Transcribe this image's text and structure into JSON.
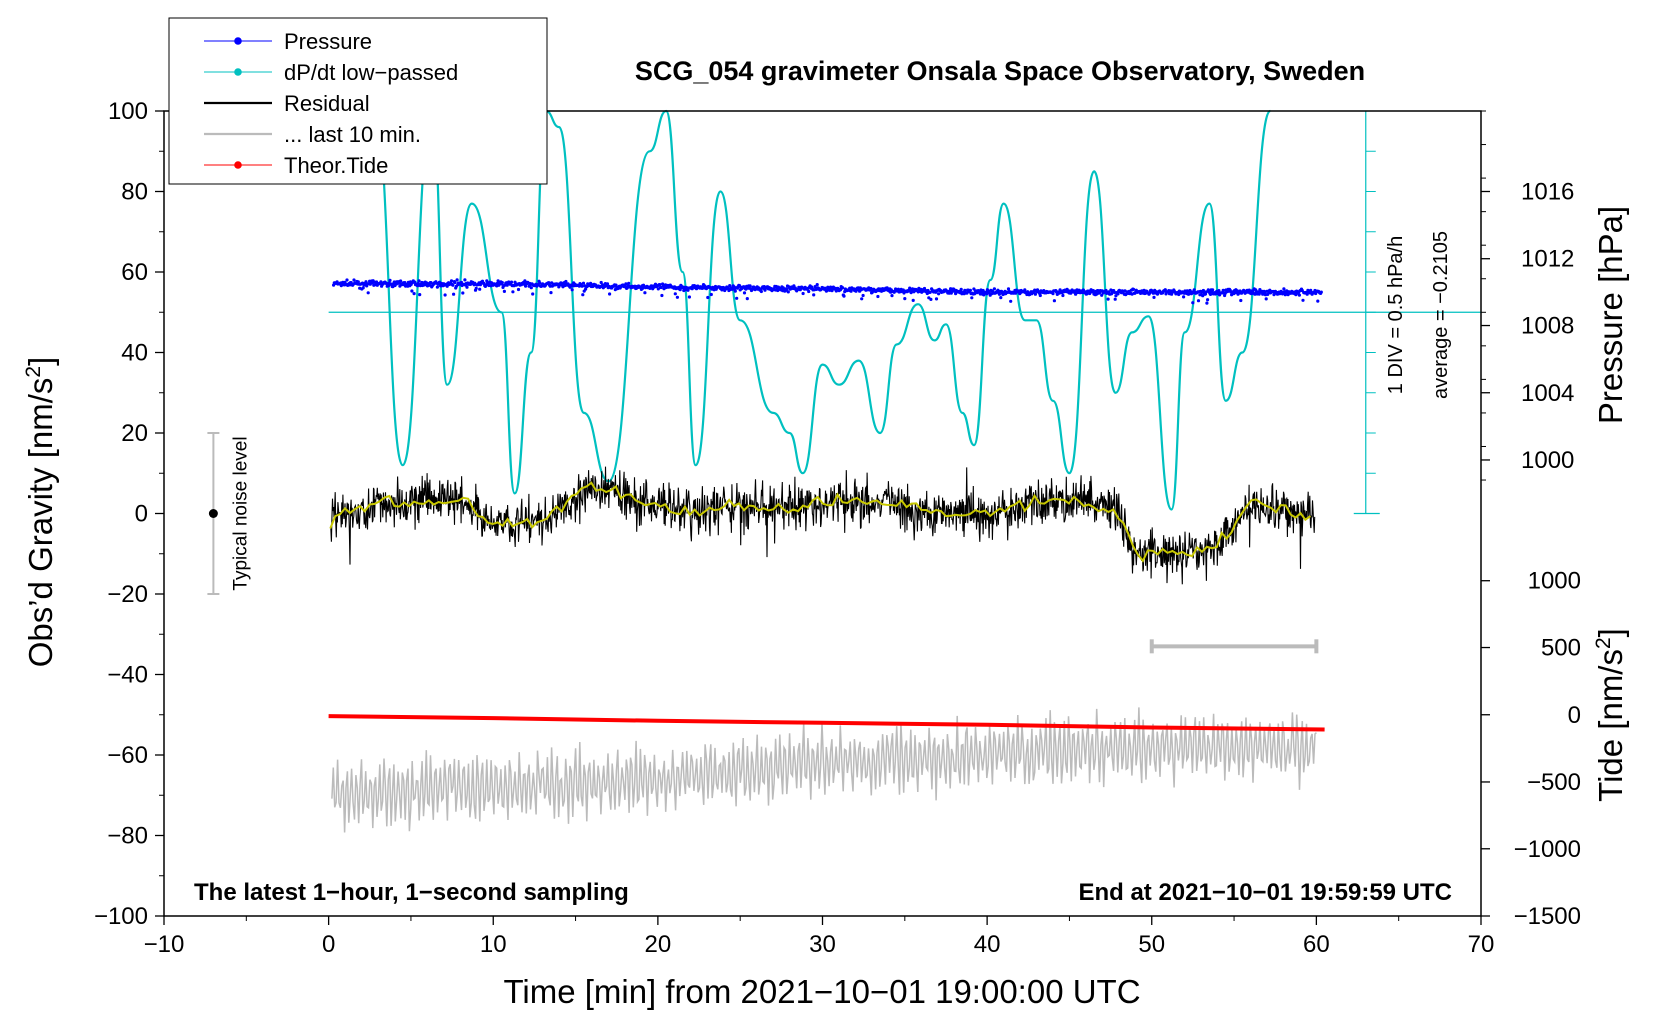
{
  "chart_data": {
    "type": "line",
    "title": "SCG_054 gravimeter Onsala Space Observatory, Sweden",
    "xlabel": "Time [min] from 2021−10−01 19:00:00 UTC",
    "ylabel_left": "Obs’d Gravity [nm/s²]",
    "ylabel_left_main": "Obs’d Gravity [nm/s",
    "ylabel_left_sup": "2",
    "ylabel_left_end": "]",
    "ylabel_pressure": "Pressure [hPa]",
    "ylabel_tide_main": "Tide [nm/s",
    "ylabel_tide_sup": "2",
    "ylabel_tide_end": "]",
    "xlim": [
      -10,
      70
    ],
    "ylim": [
      -100,
      100
    ],
    "xticks": [
      -10,
      0,
      10,
      20,
      30,
      40,
      50,
      60,
      70
    ],
    "xtick_labels": [
      "−10",
      "0",
      "10",
      "20",
      "30",
      "40",
      "50",
      "60",
      "70"
    ],
    "yticks": [
      100,
      80,
      60,
      40,
      20,
      0,
      -20,
      -40,
      -60,
      -80,
      -100
    ],
    "ytick_labels": [
      "100",
      "80",
      "60",
      "40",
      "20",
      "0",
      "−20",
      "−40",
      "−60",
      "−80",
      "−100"
    ],
    "pressure_axis": {
      "ticks": [
        1016,
        1012,
        1008,
        1004,
        1000
      ],
      "labels": [
        "1016",
        "1012",
        "1008",
        "1004",
        "1000"
      ],
      "gravity_equivalent": [
        80,
        63.3,
        46.7,
        30,
        13.3
      ]
    },
    "tide_axis": {
      "ticks": [
        1000,
        500,
        0,
        -500,
        -1000,
        -1500
      ],
      "labels": [
        "1000",
        "500",
        "0",
        "−500",
        "−1000",
        "−1500"
      ],
      "gravity_equivalent": [
        -16.7,
        -33.3,
        -50,
        -66.7,
        -83.3,
        -100
      ]
    },
    "legend": [
      {
        "label": "Pressure",
        "color": "#0000ff",
        "style": "line-dot"
      },
      {
        "label": "dP/dt low−passed",
        "color": "#00c0c0",
        "style": "line-dot"
      },
      {
        "label": "Residual",
        "color": "#000000",
        "style": "line"
      },
      {
        "label": "... last 10 min.",
        "color": "#bbbbbb",
        "style": "line"
      },
      {
        "label": "Theor.Tide",
        "color": "#ff0000",
        "style": "line-dot"
      }
    ],
    "series": [
      {
        "name": "Pressure",
        "color": "#0000ff",
        "unit": "hPa",
        "x": [
          0,
          10,
          20,
          30,
          40,
          50,
          60
        ],
        "values": [
          1010.5,
          1010.5,
          1010.3,
          1010.2,
          1010.0,
          1010.0,
          1010.0
        ]
      },
      {
        "name": "dP/dt low−passed",
        "color": "#00c0c0",
        "unit": "nm/s² scale",
        "baseline": 50,
        "x": [
          2.8,
          4.5,
          6.3,
          7.2,
          8.7,
          10.5,
          11.3,
          12.3,
          13.2,
          14.0,
          15.5,
          17.0,
          19.5,
          20.5,
          21.5,
          22.3,
          23.8,
          25.0,
          27.0,
          28.0,
          28.8,
          30.0,
          31.0,
          32.2,
          33.5,
          34.5,
          35.8,
          36.8,
          37.5,
          38.5,
          39.2,
          40.2,
          41.0,
          42.3,
          43.0,
          44.0,
          45.0,
          46.5,
          47.8,
          48.8,
          49.8,
          51.2,
          52.0,
          53.5,
          54.5,
          55.5,
          57.2
        ],
        "values": [
          100,
          12,
          100,
          32,
          77,
          50,
          5,
          40,
          100,
          96,
          25,
          8,
          90,
          100,
          60,
          12,
          80,
          48,
          25,
          20,
          10,
          37,
          32,
          38,
          20,
          42,
          52,
          43,
          47,
          25,
          17,
          58,
          77,
          48,
          48,
          28,
          10,
          85,
          30,
          45,
          49,
          1,
          45,
          77,
          28,
          40,
          100
        ]
      },
      {
        "name": "Residual",
        "color": "#000000",
        "x": [
          0,
          3,
          5,
          8,
          10,
          13,
          16,
          19,
          22,
          25,
          28,
          31,
          34,
          37,
          40,
          43,
          46,
          48,
          49,
          50,
          52,
          54,
          56,
          60
        ],
        "values": [
          -2,
          3,
          3,
          3,
          -2,
          -2,
          7,
          3,
          0,
          2,
          1,
          3,
          3,
          0,
          0,
          3,
          3,
          0,
          -10,
          -10,
          -10,
          -8,
          3,
          -1
        ]
      },
      {
        "name": "... last 10 min.",
        "color": "#bbbbbb",
        "values": [
          -70,
          -68,
          -66,
          -62,
          -60,
          -58,
          -58
        ]
      },
      {
        "name": "Theor.Tide",
        "color": "#ff0000",
        "unit": "nm/s²",
        "x": [
          0,
          10,
          20,
          30,
          40,
          50,
          60.5
        ],
        "values": [
          -10,
          -25,
          -45,
          -60,
          -75,
          -95,
          -110
        ]
      }
    ],
    "noise_marker": {
      "label": "Typical noise level",
      "x": -7,
      "center": 0,
      "range": [
        -20,
        20
      ]
    },
    "last10_bar": {
      "x_start": 50,
      "x_end": 60,
      "y": -33
    },
    "annotations": {
      "div_note": "1 DIV = 0.5 hPa/h",
      "average_note": "average = −0.2105",
      "bottom_left": "The latest 1−hour, 1−second sampling",
      "bottom_right": "End at 2021−10−01 19:59:59 UTC"
    },
    "grid": false,
    "legend_position": "top-left"
  }
}
